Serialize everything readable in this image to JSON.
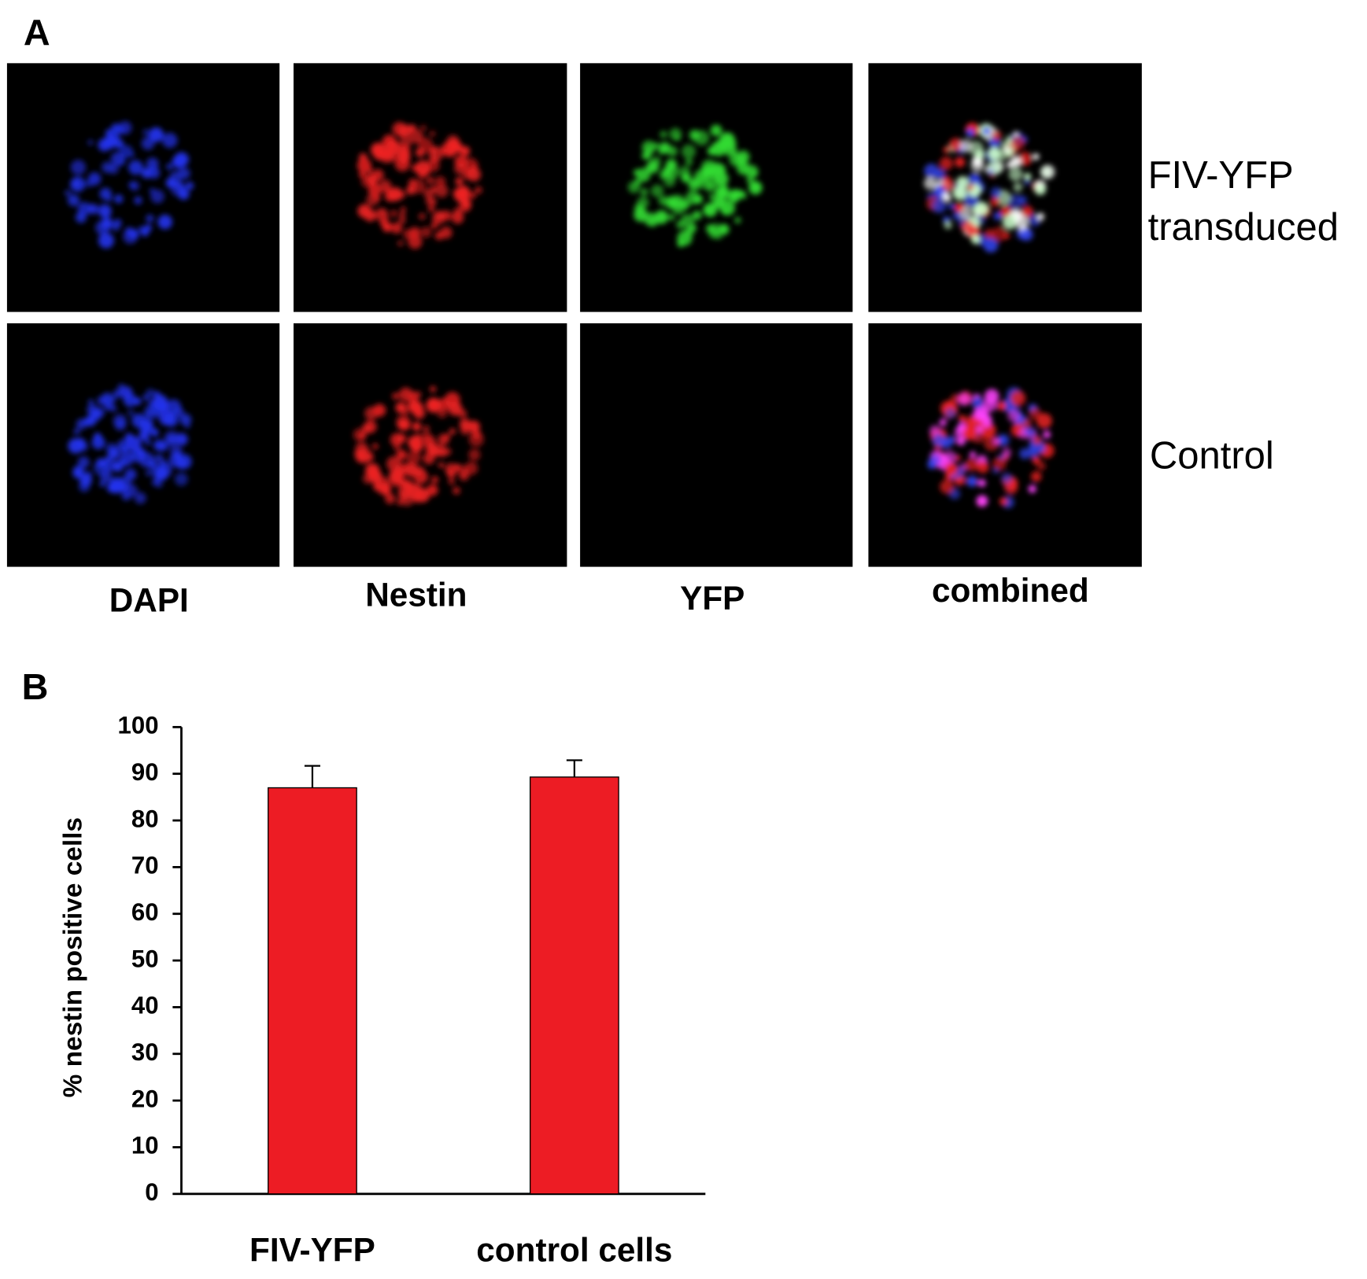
{
  "panel_a": {
    "label": "A",
    "columns": [
      "DAPI",
      "Nestin",
      "YFP",
      "combined"
    ],
    "rows": [
      {
        "label": [
          "FIV-YFP",
          "transduced"
        ]
      },
      {
        "label": [
          "Control"
        ]
      }
    ]
  },
  "chart_data": {
    "type": "bar",
    "panel_label": "B",
    "ylabel": "% nestin positive cells",
    "categories": [
      "FIV-YFP",
      "control cells"
    ],
    "values": [
      87,
      89.3
    ],
    "errors": [
      4.7,
      3.6
    ],
    "color": "#ed1c24",
    "ylim": [
      0,
      100
    ],
    "yticks": [
      0,
      10,
      20,
      30,
      40,
      50,
      60,
      70,
      80,
      90,
      100
    ]
  }
}
